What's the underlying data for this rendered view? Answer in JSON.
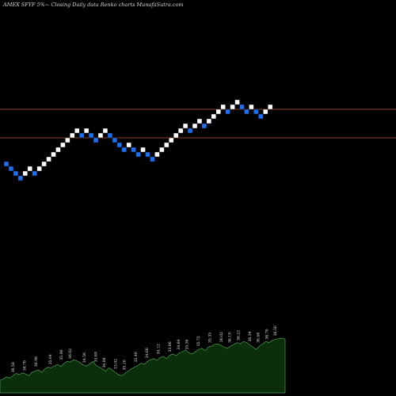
{
  "chart_data": {
    "type": "renko",
    "title": "AMEX  SFYF 5%~   Closing Daily data  Renko  charts MunafaSutra.com",
    "colors": {
      "up_brick": "#ffffff",
      "down_brick": "#1e6ff0",
      "reference_line": "#c0501f",
      "volume_area": "#0b2e0b",
      "volume_outline": "#4f9f4f",
      "background": "#000000"
    },
    "reference_levels": [
      138,
      174
    ],
    "bricks": [
      {
        "dir": "down",
        "level": 207
      },
      {
        "dir": "down",
        "level": 213
      },
      {
        "dir": "down",
        "level": 219
      },
      {
        "dir": "down",
        "level": 225
      },
      {
        "dir": "up",
        "level": 219
      },
      {
        "dir": "up",
        "level": 213
      },
      {
        "dir": "down",
        "level": 219
      },
      {
        "dir": "up",
        "level": 213
      },
      {
        "dir": "up",
        "level": 207
      },
      {
        "dir": "up",
        "level": 201
      },
      {
        "dir": "up",
        "level": 195
      },
      {
        "dir": "up",
        "level": 189
      },
      {
        "dir": "up",
        "level": 183
      },
      {
        "dir": "up",
        "level": 177
      },
      {
        "dir": "up",
        "level": 171
      },
      {
        "dir": "up",
        "level": 165
      },
      {
        "dir": "down",
        "level": 171
      },
      {
        "dir": "up",
        "level": 165
      },
      {
        "dir": "down",
        "level": 171
      },
      {
        "dir": "down",
        "level": 177
      },
      {
        "dir": "up",
        "level": 171
      },
      {
        "dir": "up",
        "level": 165
      },
      {
        "dir": "down",
        "level": 171
      },
      {
        "dir": "down",
        "level": 177
      },
      {
        "dir": "down",
        "level": 183
      },
      {
        "dir": "down",
        "level": 189
      },
      {
        "dir": "up",
        "level": 183
      },
      {
        "dir": "down",
        "level": 189
      },
      {
        "dir": "down",
        "level": 195
      },
      {
        "dir": "up",
        "level": 189
      },
      {
        "dir": "down",
        "level": 195
      },
      {
        "dir": "down",
        "level": 201
      },
      {
        "dir": "up",
        "level": 195
      },
      {
        "dir": "up",
        "level": 189
      },
      {
        "dir": "up",
        "level": 183
      },
      {
        "dir": "up",
        "level": 177
      },
      {
        "dir": "up",
        "level": 171
      },
      {
        "dir": "up",
        "level": 165
      },
      {
        "dir": "up",
        "level": 159
      },
      {
        "dir": "down",
        "level": 165
      },
      {
        "dir": "up",
        "level": 159
      },
      {
        "dir": "up",
        "level": 153
      },
      {
        "dir": "down",
        "level": 159
      },
      {
        "dir": "up",
        "level": 153
      },
      {
        "dir": "up",
        "level": 147
      },
      {
        "dir": "up",
        "level": 141
      },
      {
        "dir": "up",
        "level": 135
      },
      {
        "dir": "down",
        "level": 141
      },
      {
        "dir": "up",
        "level": 135
      },
      {
        "dir": "up",
        "level": 129
      },
      {
        "dir": "down",
        "level": 135
      },
      {
        "dir": "down",
        "level": 141
      },
      {
        "dir": "up",
        "level": 135
      },
      {
        "dir": "down",
        "level": 141
      },
      {
        "dir": "down",
        "level": 147
      },
      {
        "dir": "up",
        "level": 141
      },
      {
        "dir": "up",
        "level": 135
      }
    ],
    "volume": {
      "heights": [
        22,
        24,
        28,
        26,
        30,
        34,
        32,
        35,
        33,
        30,
        36,
        38,
        40,
        36,
        42,
        45,
        44,
        47,
        50,
        46,
        52,
        55,
        54,
        58,
        56,
        53,
        49,
        47,
        51,
        55,
        48,
        45,
        42,
        38,
        44,
        40,
        36,
        32,
        30,
        34,
        38,
        42,
        45,
        48,
        52,
        50,
        55,
        58,
        60,
        57,
        62,
        64,
        60,
        66,
        68,
        65,
        70,
        72,
        75,
        70,
        68,
        72,
        76,
        78,
        74,
        80,
        82,
        85,
        86,
        83,
        80,
        78,
        82,
        85,
        88,
        86,
        90,
        88,
        84,
        80,
        76,
        82,
        86,
        90,
        88,
        92,
        94,
        95,
        96,
        94
      ],
      "labels": [
        {
          "t": "36.58",
          "b": 0.05
        },
        {
          "t": "36.76",
          "b": 0.09
        },
        {
          "t": "36.98",
          "b": 0.13
        },
        {
          "t": "35.64",
          "b": 0.18
        },
        {
          "t": "35.90",
          "b": 0.22
        },
        {
          "t": "36.02",
          "b": 0.25
        },
        {
          "t": "34.56",
          "b": 0.3
        },
        {
          "t": "34.69",
          "b": 0.34
        },
        {
          "t": "34.88",
          "b": 0.37
        },
        {
          "t": "33.92",
          "b": 0.41
        },
        {
          "t": "35.10",
          "b": 0.44
        },
        {
          "t": "35.46",
          "b": 0.48
        },
        {
          "t": "34.66",
          "b": 0.52
        },
        {
          "t": "34.12",
          "b": 0.56
        },
        {
          "t": "33.86",
          "b": 0.6
        },
        {
          "t": "34.84",
          "b": 0.63
        },
        {
          "t": "35.30",
          "b": 0.66
        },
        {
          "t": "35.72",
          "b": 0.7
        },
        {
          "t": "35.35",
          "b": 0.74
        },
        {
          "t": "36.02",
          "b": 0.78
        },
        {
          "t": "36.19",
          "b": 0.81
        },
        {
          "t": "36.22",
          "b": 0.84
        },
        {
          "t": "36.34",
          "b": 0.88
        },
        {
          "t": "36.46",
          "b": 0.91
        },
        {
          "t": "36.70",
          "b": 0.94
        },
        {
          "t": "36.50",
          "b": 0.97
        }
      ]
    }
  }
}
